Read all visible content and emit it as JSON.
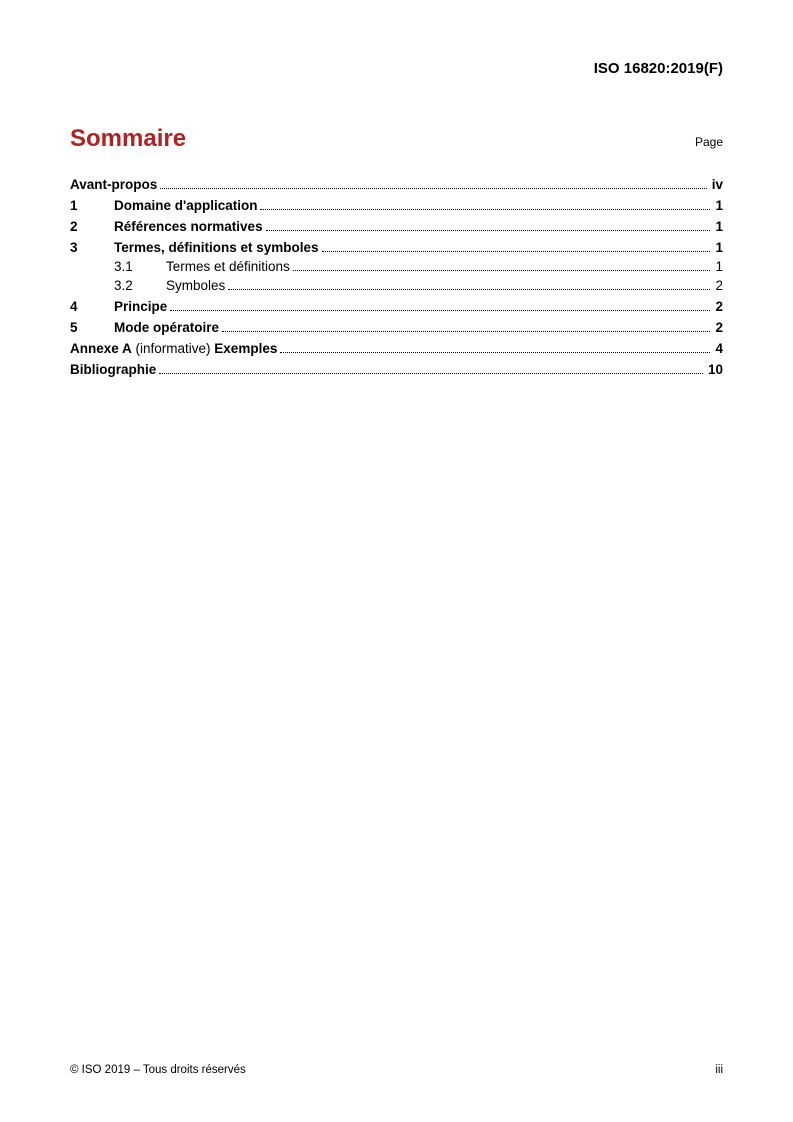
{
  "header": {
    "doc_id": "ISO 16820:2019(F)"
  },
  "title": "Sommaire",
  "page_label": "Page",
  "toc": {
    "avant_propos": {
      "label": "Avant-propos",
      "page": "iv"
    },
    "s1": {
      "num": "1",
      "label": "Domaine d'application",
      "page": "1"
    },
    "s2": {
      "num": "2",
      "label": "Références normatives",
      "page": "1"
    },
    "s3": {
      "num": "3",
      "label": "Termes, définitions et symboles",
      "page": "1"
    },
    "s3_1": {
      "num": "3.1",
      "label": "Termes et définitions",
      "page": "1"
    },
    "s3_2": {
      "num": "3.2",
      "label": "Symboles",
      "page": "2"
    },
    "s4": {
      "num": "4",
      "label": "Principe",
      "page": "2"
    },
    "s5": {
      "num": "5",
      "label": "Mode opératoire",
      "page": "2"
    },
    "annexA": {
      "prefix": "Annexe A",
      "qualifier": " (informative) ",
      "suffix": "Exemples",
      "page": "4"
    },
    "biblio": {
      "label": "Bibliographie",
      "page": "10"
    }
  },
  "footer": {
    "copyright": "© ISO 2019 – Tous droits réservés",
    "pagenum": "iii"
  }
}
